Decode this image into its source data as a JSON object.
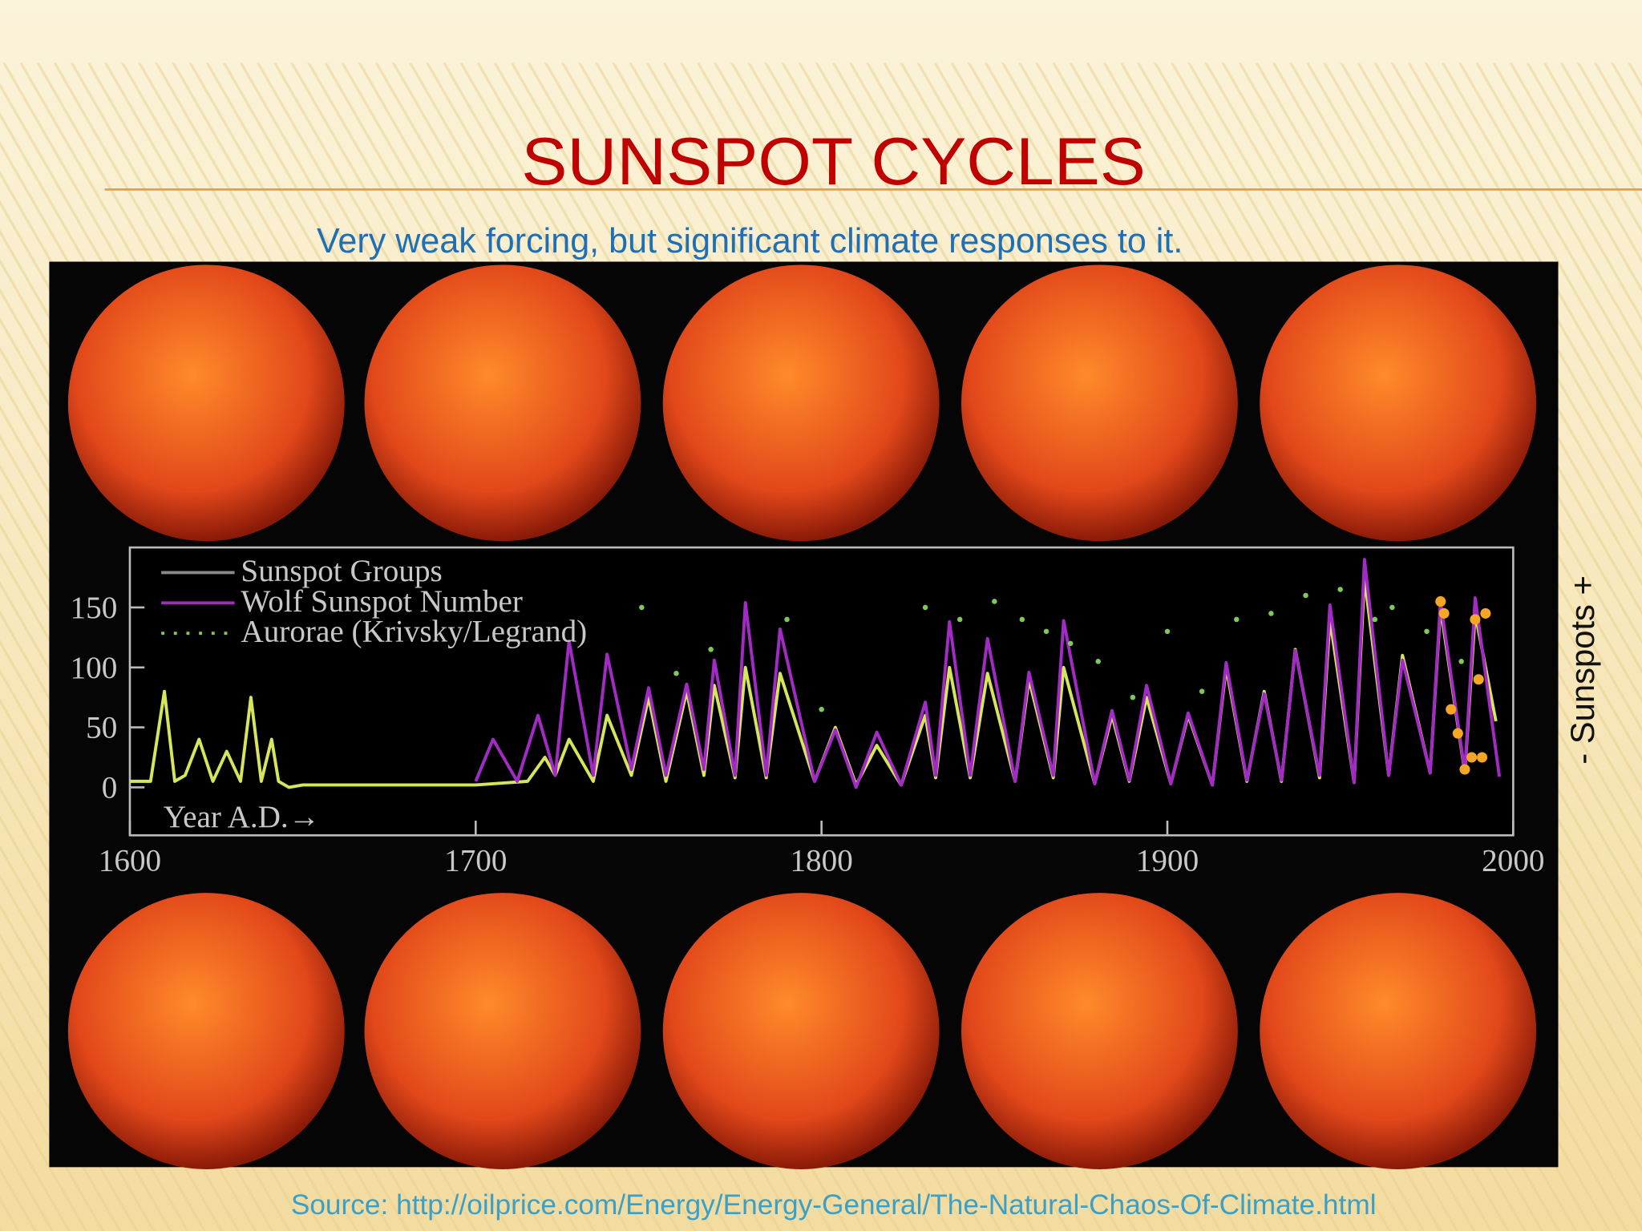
{
  "title": "SUNSPOT CYCLES",
  "subtitle": "Very weak forcing, but significant climate responses to it.",
  "side_label": "- Sunspots +",
  "source": "Source: http://oilprice.com/Energy/Energy-General/The-Natural-Chaos-Of-Climate.html",
  "chart_data": {
    "type": "line",
    "annotation": "Year A.D.→",
    "xlim": [
      1600,
      2000
    ],
    "xticks": [
      1600,
      1700,
      1800,
      1900,
      2000
    ],
    "ylim": [
      -40,
      200
    ],
    "yticks": [
      0,
      50,
      100,
      150
    ],
    "legend": "top-left",
    "series": [
      {
        "name": "Sunspot Groups",
        "color": "#d6e65a",
        "legend_color": "#8a8a8a",
        "style": "line",
        "x": [
          1600,
          1606,
          1610,
          1613,
          1616,
          1620,
          1624,
          1628,
          1632,
          1635,
          1638,
          1641,
          1643,
          1646,
          1650,
          1700,
          1715,
          1720,
          1723,
          1727,
          1734,
          1738,
          1745,
          1750,
          1755,
          1761,
          1766,
          1769,
          1775,
          1778,
          1784,
          1788,
          1798,
          1804,
          1810,
          1816,
          1823,
          1830,
          1833,
          1837,
          1843,
          1848,
          1856,
          1860,
          1867,
          1870,
          1879,
          1884,
          1889,
          1894,
          1901,
          1906,
          1913,
          1917,
          1923,
          1928,
          1933,
          1937,
          1944,
          1947,
          1954,
          1957,
          1964,
          1968,
          1976,
          1979,
          1986,
          1989,
          1995
        ],
        "values": [
          5,
          5,
          80,
          5,
          10,
          40,
          5,
          30,
          5,
          75,
          5,
          40,
          5,
          0,
          2,
          2,
          5,
          25,
          10,
          40,
          5,
          60,
          10,
          75,
          5,
          80,
          10,
          85,
          8,
          100,
          8,
          95,
          5,
          50,
          2,
          35,
          2,
          60,
          8,
          100,
          8,
          95,
          5,
          90,
          8,
          100,
          3,
          60,
          5,
          75,
          3,
          60,
          2,
          100,
          5,
          80,
          5,
          115,
          8,
          140,
          4,
          175,
          10,
          110,
          12,
          150,
          12,
          145,
          55
        ]
      },
      {
        "name": "Wolf Sunspot Number",
        "color": "#a12bc4",
        "style": "line",
        "x": [
          1700,
          1705,
          1712,
          1718,
          1723,
          1727,
          1734,
          1738,
          1745,
          1750,
          1755,
          1761,
          1766,
          1769,
          1775,
          1778,
          1784,
          1788,
          1798,
          1804,
          1810,
          1816,
          1823,
          1830,
          1833,
          1837,
          1843,
          1848,
          1856,
          1860,
          1867,
          1870,
          1879,
          1884,
          1889,
          1894,
          1901,
          1906,
          1913,
          1917,
          1923,
          1928,
          1933,
          1937,
          1944,
          1947,
          1954,
          1957,
          1964,
          1968,
          1976,
          1979,
          1986,
          1989,
          1996
        ],
        "values": [
          5,
          40,
          5,
          60,
          10,
          122,
          10,
          111,
          15,
          83,
          10,
          86,
          15,
          106,
          10,
          154,
          10,
          132,
          5,
          48,
          0,
          46,
          2,
          71,
          10,
          138,
          10,
          124,
          5,
          96,
          10,
          139,
          3,
          64,
          6,
          85,
          3,
          62,
          2,
          104,
          6,
          78,
          6,
          114,
          10,
          152,
          4,
          190,
          10,
          106,
          12,
          155,
          13,
          158,
          9
        ]
      },
      {
        "name": "Aurorae (Krivsky/Legrand)",
        "color": "#7fc85a",
        "style": "dots",
        "x": [
          1748,
          1758,
          1768,
          1790,
          1800,
          1830,
          1840,
          1850,
          1858,
          1865,
          1872,
          1880,
          1890,
          1900,
          1910,
          1920,
          1930,
          1940,
          1950,
          1960,
          1965,
          1975,
          1985
        ],
        "values": [
          150,
          95,
          115,
          140,
          65,
          150,
          140,
          155,
          140,
          130,
          120,
          105,
          75,
          130,
          80,
          140,
          145,
          160,
          165,
          140,
          150,
          130,
          105
        ]
      },
      {
        "color": "#f5a623",
        "style": "dots",
        "x": [
          1979,
          1980,
          1982,
          1984,
          1986,
          1988,
          1989,
          1990,
          1991,
          1992
        ],
        "values": [
          155,
          145,
          65,
          45,
          15,
          25,
          140,
          90,
          25,
          145
        ]
      }
    ]
  }
}
